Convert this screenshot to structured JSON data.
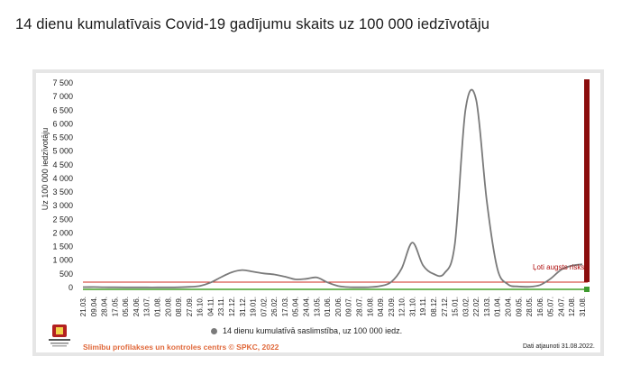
{
  "page": {
    "title": "14 dienu kumulatīvais Covid-19 gadījumu skaits uz 100 000 iedzīvotāju"
  },
  "legend": {
    "label": "14 dienu kumulatīvā saslimstība, uz 100 000 iedz."
  },
  "footer": {
    "source": "Slimību profilakses un kontroles centrs © SPKC, 2022",
    "updated": "Dati atjaunoti 31.08.2022."
  },
  "colors": {
    "line": "#7a7a7a",
    "risk_line": "#cc2a1d",
    "baseline": "#46a02a",
    "bar_dark_red": "#8b0d0d",
    "bar_green": "#3d9a2e",
    "footer_orange": "#e0683a"
  },
  "chart_data": {
    "type": "line",
    "title": "14 dienu kumulatīvais Covid-19 gadījumu skaits uz 100 000 iedzīvotāju",
    "ylabel": "Uz 100 000 iedzīvotāju",
    "xlabel": "",
    "ylim": [
      0,
      7500
    ],
    "yticks": [
      0,
      500,
      1000,
      1500,
      2000,
      2500,
      3000,
      3500,
      4000,
      4500,
      5000,
      5500,
      6000,
      6500,
      7000,
      7500
    ],
    "ytick_labels": [
      "0",
      "500",
      "1 000",
      "1 500",
      "2 000",
      "2 500",
      "3 000",
      "3 500",
      "4 000",
      "4 500",
      "5 000",
      "5 500",
      "6 000",
      "6 500",
      "7 000",
      "7 500"
    ],
    "categories": [
      "21.03.",
      "09.04.",
      "28.04.",
      "17.05.",
      "05.06.",
      "24.06.",
      "13.07.",
      "01.08.",
      "20.08.",
      "08.09.",
      "27.09.",
      "16.10.",
      "04.11.",
      "23.11.",
      "12.12.",
      "31.12.",
      "19.01.",
      "07.02.",
      "26.02.",
      "17.03.",
      "05.04.",
      "24.04.",
      "13.05.",
      "01.06.",
      "20.06.",
      "09.07.",
      "28.07.",
      "16.08.",
      "04.09.",
      "23.09.",
      "12.10.",
      "31.10.",
      "19.11.",
      "08.12.",
      "27.12.",
      "15.01.",
      "03.02.",
      "22.02.",
      "13.03.",
      "01.04.",
      "20.04.",
      "09.05.",
      "28.05.",
      "16.06.",
      "05.07.",
      "24.07.",
      "12.08.",
      "31.08."
    ],
    "series": [
      {
        "name": "14 dienu kumulatīvā saslimstība, uz 100 000 iedz.",
        "values": [
          15,
          20,
          12,
          10,
          8,
          6,
          5,
          5,
          6,
          10,
          25,
          60,
          180,
          380,
          560,
          640,
          580,
          520,
          480,
          400,
          300,
          320,
          370,
          190,
          60,
          15,
          10,
          15,
          55,
          200,
          700,
          1650,
          820,
          500,
          520,
          1600,
          6500,
          6900,
          3200,
          700,
          120,
          40,
          30,
          90,
          320,
          650,
          800,
          850
        ]
      }
    ],
    "annotations": [
      {
        "label": "Ļoti augsts risks",
        "value": 200
      }
    ],
    "grid": false,
    "legend_position": "bottom"
  }
}
